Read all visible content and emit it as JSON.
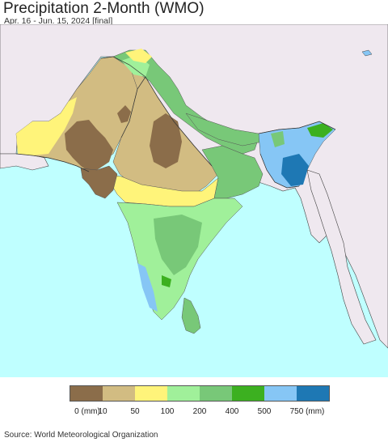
{
  "title": "Precipitation 2-Month (WMO)",
  "subtitle": "Apr. 16 - Jun. 15, 2024 [final]",
  "source": "Source: World Meteorological Organization",
  "legend": {
    "labels": [
      "0 (mm)",
      "10",
      "50",
      "100",
      "200",
      "400",
      "500",
      "750 (mm)"
    ],
    "colors": [
      "#8b6d4a",
      "#d2bc82",
      "#fff47a",
      "#a0f09a",
      "#78c878",
      "#3cb020",
      "#86c6f5",
      "#1e78b4"
    ]
  },
  "map_colors": {
    "ocean": "#bfffff",
    "land_outside": "#efe8ef",
    "border": "#333333"
  }
}
